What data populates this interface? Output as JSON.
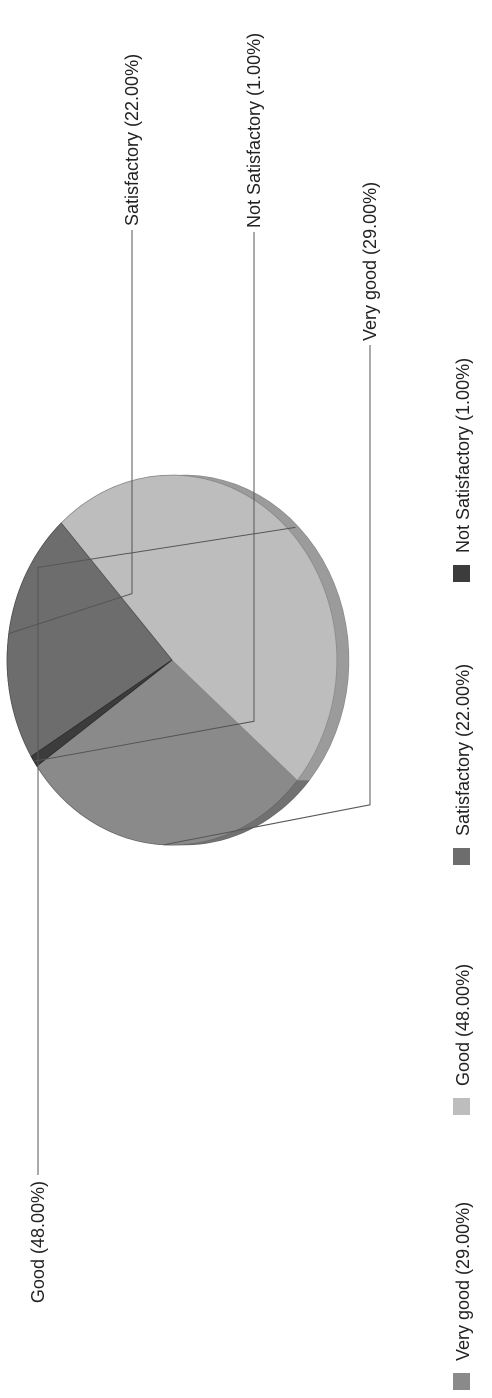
{
  "chart_data": {
    "type": "pie",
    "title": "",
    "slices": [
      {
        "label": "Very good (29.00%)",
        "value": 29,
        "color": "#8a8a8a"
      },
      {
        "label": "Good (48.00%)",
        "value": 48,
        "color": "#bdbdbd"
      },
      {
        "label": "Satisfactory (22.00%)",
        "value": 22,
        "color": "#6d6d6d"
      },
      {
        "label": "Not Satisfactory (1.00%)",
        "value": 1,
        "color": "#3c3c3c"
      }
    ],
    "legend": {
      "position": "right",
      "orientation": "rotated"
    },
    "rotation": "rotated 90 degrees counter-clockwise"
  }
}
